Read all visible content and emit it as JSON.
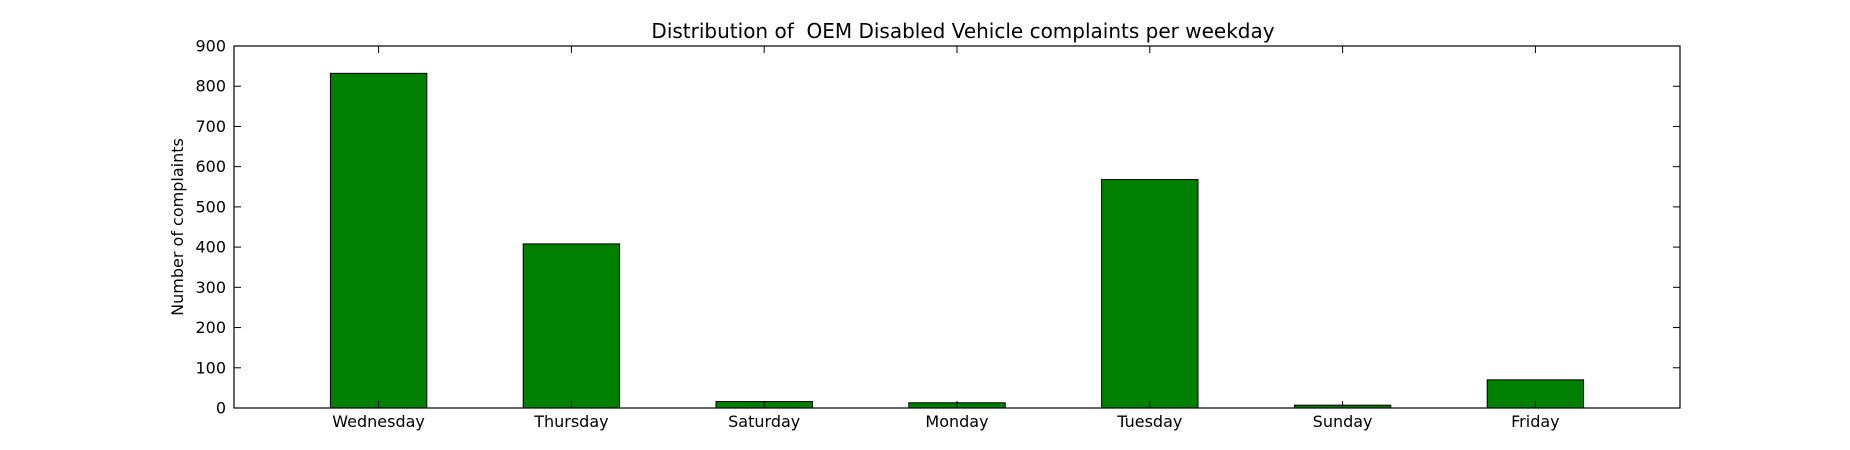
{
  "chart_data": {
    "type": "bar",
    "title": "Distribution of  OEM Disabled Vehicle complaints per weekday",
    "xlabel": "",
    "ylabel": "Number of complaints",
    "categories": [
      "Wednesday",
      "Thursday",
      "Saturday",
      "Monday",
      "Tuesday",
      "Sunday",
      "Friday"
    ],
    "values": [
      832,
      408,
      16,
      13,
      568,
      7,
      70
    ],
    "ylim": [
      0,
      900
    ],
    "yticks": [
      0,
      100,
      200,
      300,
      400,
      500,
      600,
      700,
      800,
      900
    ],
    "bar_color": "#008000",
    "grid": false,
    "legend": "none"
  }
}
